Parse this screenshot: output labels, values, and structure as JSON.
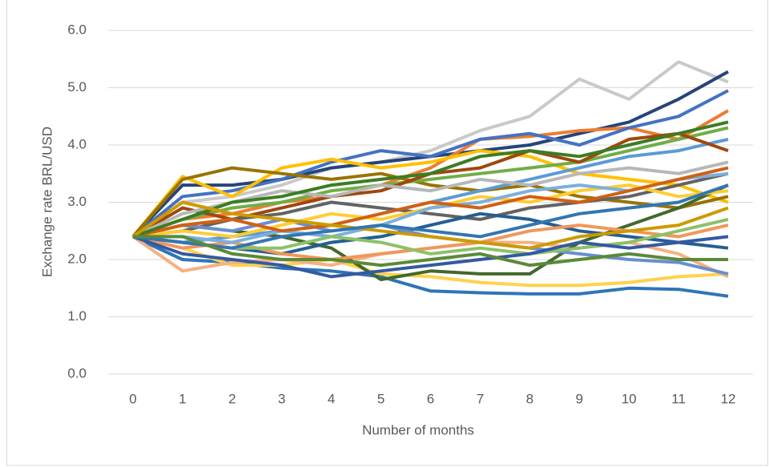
{
  "chart_data": {
    "type": "line",
    "y_label": "Exchange rate BRL/USD",
    "x_label": "Number of months",
    "categories": [
      "0",
      "1",
      "2",
      "3",
      "4",
      "5",
      "6",
      "7",
      "8",
      "9",
      "10",
      "11",
      "12"
    ],
    "ylim": [
      0,
      6
    ],
    "yticks": [
      {
        "value": 0,
        "label": "0.0"
      },
      {
        "value": 1,
        "label": "1.0"
      },
      {
        "value": 2,
        "label": "2.0"
      },
      {
        "value": 3,
        "label": "3.0"
      },
      {
        "value": 4,
        "label": "4.0"
      },
      {
        "value": 5,
        "label": "5.0"
      },
      {
        "value": 6,
        "label": "6.0"
      }
    ],
    "grid": true,
    "series": [
      {
        "color": "#c9c9c9",
        "values": [
          2.4,
          3.0,
          3.1,
          3.3,
          3.6,
          3.7,
          3.9,
          4.25,
          4.5,
          5.15,
          4.8,
          5.45,
          5.1
        ]
      },
      {
        "color": "#264478",
        "values": [
          2.4,
          3.3,
          3.3,
          3.4,
          3.6,
          3.7,
          3.8,
          3.9,
          4.0,
          4.2,
          4.4,
          4.8,
          5.28
        ]
      },
      {
        "color": "#2e75b6",
        "values": [
          2.4,
          2.0,
          1.95,
          1.85,
          1.8,
          1.7,
          1.45,
          1.42,
          1.4,
          1.4,
          1.5,
          1.48,
          1.36
        ]
      },
      {
        "color": "#ed7d31",
        "values": [
          2.4,
          2.7,
          2.8,
          3.0,
          3.1,
          3.3,
          3.6,
          4.1,
          4.15,
          4.25,
          4.3,
          4.1,
          4.6
        ]
      },
      {
        "color": "#4472c4",
        "values": [
          2.4,
          3.1,
          3.2,
          3.4,
          3.7,
          3.9,
          3.8,
          4.1,
          4.2,
          4.0,
          4.3,
          4.5,
          4.95
        ]
      },
      {
        "color": "#ffc000",
        "values": [
          2.4,
          3.45,
          3.1,
          3.6,
          3.75,
          3.6,
          3.7,
          3.9,
          3.8,
          3.5,
          3.4,
          3.3,
          3.0
        ]
      },
      {
        "color": "#997300",
        "values": [
          2.4,
          3.4,
          3.6,
          3.5,
          3.4,
          3.5,
          3.3,
          3.2,
          3.3,
          3.1,
          3.0,
          2.9,
          3.1
        ]
      },
      {
        "color": "#ffd24d",
        "values": [
          2.4,
          2.2,
          1.9,
          1.9,
          2.0,
          1.75,
          1.7,
          1.6,
          1.55,
          1.55,
          1.6,
          1.7,
          1.75
        ]
      },
      {
        "color": "#f4b183",
        "values": [
          2.4,
          1.8,
          1.95,
          2.0,
          1.9,
          2.1,
          2.2,
          2.3,
          2.3,
          2.2,
          2.3,
          2.1,
          1.7
        ]
      },
      {
        "color": "#43682b",
        "values": [
          2.4,
          2.6,
          2.5,
          2.4,
          2.2,
          1.65,
          1.8,
          1.75,
          1.75,
          2.3,
          2.6,
          2.9,
          3.3
        ]
      },
      {
        "color": "#5b9bd5",
        "values": [
          2.4,
          2.3,
          2.4,
          2.5,
          2.6,
          2.8,
          3.0,
          3.2,
          3.4,
          3.6,
          3.8,
          3.9,
          4.1
        ]
      },
      {
        "color": "#70ad47",
        "values": [
          2.4,
          2.7,
          2.9,
          3.0,
          3.2,
          3.3,
          3.4,
          3.5,
          3.6,
          3.7,
          3.9,
          4.1,
          4.3
        ]
      },
      {
        "color": "#9e480e",
        "values": [
          2.4,
          2.9,
          2.7,
          2.9,
          3.1,
          3.2,
          3.5,
          3.6,
          3.9,
          3.7,
          4.1,
          4.2,
          3.9
        ]
      },
      {
        "color": "#636363",
        "values": [
          2.4,
          2.5,
          2.7,
          2.8,
          3.0,
          2.9,
          2.8,
          2.7,
          2.9,
          3.0,
          3.1,
          3.3,
          3.5
        ]
      },
      {
        "color": "#255e91",
        "values": [
          2.4,
          2.3,
          2.2,
          2.1,
          2.3,
          2.4,
          2.6,
          2.8,
          2.7,
          2.5,
          2.4,
          2.3,
          2.2
        ]
      },
      {
        "color": "#698ed0",
        "values": [
          2.4,
          2.6,
          2.5,
          2.7,
          2.5,
          2.6,
          2.4,
          2.3,
          2.2,
          2.1,
          2.0,
          1.95,
          1.75
        ]
      },
      {
        "color": "#f1975a",
        "values": [
          2.4,
          2.2,
          2.3,
          2.1,
          2.0,
          2.1,
          2.2,
          2.3,
          2.5,
          2.6,
          2.5,
          2.4,
          2.6
        ]
      },
      {
        "color": "#b7b7b7",
        "values": [
          2.4,
          2.8,
          3.0,
          3.2,
          3.1,
          3.3,
          3.2,
          3.4,
          3.3,
          3.5,
          3.6,
          3.5,
          3.7
        ]
      },
      {
        "color": "#ffcd33",
        "values": [
          2.4,
          2.5,
          2.4,
          2.6,
          2.8,
          2.7,
          2.9,
          3.1,
          3.0,
          3.2,
          3.3,
          3.1,
          3.2
        ]
      },
      {
        "color": "#7cafdd",
        "values": [
          2.4,
          2.4,
          2.3,
          2.5,
          2.4,
          2.6,
          2.9,
          3.0,
          3.2,
          3.3,
          3.2,
          3.4,
          3.5
        ]
      },
      {
        "color": "#8cc168",
        "values": [
          2.4,
          2.3,
          2.2,
          2.2,
          2.4,
          2.3,
          2.1,
          2.2,
          2.1,
          2.2,
          2.3,
          2.5,
          2.7
        ]
      },
      {
        "color": "#335aa1",
        "values": [
          2.4,
          2.1,
          2.0,
          1.9,
          1.7,
          1.8,
          1.9,
          2.0,
          2.1,
          2.3,
          2.2,
          2.3,
          2.4
        ]
      },
      {
        "color": "#d26012",
        "values": [
          2.4,
          2.6,
          2.7,
          2.5,
          2.6,
          2.8,
          3.0,
          2.9,
          3.1,
          3.0,
          3.2,
          3.4,
          3.6
        ]
      },
      {
        "color": "#3c7d22",
        "values": [
          2.4,
          2.7,
          3.0,
          3.1,
          3.3,
          3.4,
          3.5,
          3.8,
          3.9,
          3.8,
          4.0,
          4.2,
          4.4
        ]
      },
      {
        "color": "#cc9a00",
        "values": [
          2.4,
          3.0,
          2.8,
          2.7,
          2.6,
          2.5,
          2.4,
          2.3,
          2.2,
          2.4,
          2.5,
          2.6,
          2.9
        ]
      },
      {
        "color": "#3276b1",
        "values": [
          2.4,
          2.3,
          2.2,
          2.4,
          2.5,
          2.6,
          2.5,
          2.4,
          2.6,
          2.8,
          2.9,
          3.0,
          3.3
        ]
      },
      {
        "color": "#5a8a39",
        "values": [
          2.4,
          2.4,
          2.1,
          2.0,
          2.0,
          1.9,
          2.0,
          2.1,
          1.9,
          2.0,
          2.1,
          2.0,
          2.0
        ]
      }
    ]
  }
}
